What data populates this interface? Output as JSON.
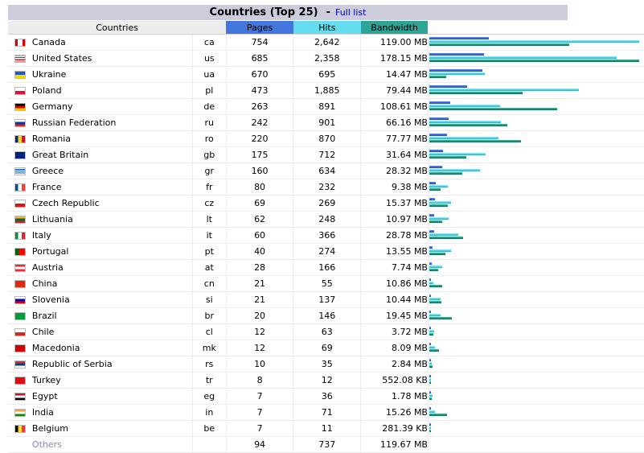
{
  "header": {
    "title": "Countries (Top 25)",
    "separator": "-",
    "full_list_link": "Full list"
  },
  "columns": {
    "country": "Countries",
    "pages": "Pages",
    "hits": "Hits",
    "bandwidth": "Bandwidth"
  },
  "colors": {
    "pages": "#4477dd",
    "hits": "#66ddee",
    "bandwidth": "#2ea495"
  },
  "rows": [
    {
      "name": "Canada",
      "code": "ca",
      "pages": "754",
      "hits": "2,642",
      "bandwidth": "119.00 MB",
      "flag_icon": "canada-flag-icon"
    },
    {
      "name": "United States",
      "code": "us",
      "pages": "685",
      "hits": "2,358",
      "bandwidth": "178.15 MB",
      "flag_icon": "united-states-flag-icon"
    },
    {
      "name": "Ukraine",
      "code": "ua",
      "pages": "670",
      "hits": "695",
      "bandwidth": "14.47 MB",
      "flag_icon": "ukraine-flag-icon"
    },
    {
      "name": "Poland",
      "code": "pl",
      "pages": "473",
      "hits": "1,885",
      "bandwidth": "79.44 MB",
      "flag_icon": "poland-flag-icon"
    },
    {
      "name": "Germany",
      "code": "de",
      "pages": "263",
      "hits": "891",
      "bandwidth": "108.61 MB",
      "flag_icon": "germany-flag-icon"
    },
    {
      "name": "Russian Federation",
      "code": "ru",
      "pages": "242",
      "hits": "901",
      "bandwidth": "66.16 MB",
      "flag_icon": "russia-flag-icon"
    },
    {
      "name": "Romania",
      "code": "ro",
      "pages": "220",
      "hits": "870",
      "bandwidth": "77.77 MB",
      "flag_icon": "romania-flag-icon"
    },
    {
      "name": "Great Britain",
      "code": "gb",
      "pages": "175",
      "hits": "712",
      "bandwidth": "31.64 MB",
      "flag_icon": "great-britain-flag-icon"
    },
    {
      "name": "Greece",
      "code": "gr",
      "pages": "160",
      "hits": "634",
      "bandwidth": "28.32 MB",
      "flag_icon": "greece-flag-icon"
    },
    {
      "name": "France",
      "code": "fr",
      "pages": "80",
      "hits": "232",
      "bandwidth": "9.38 MB",
      "flag_icon": "france-flag-icon"
    },
    {
      "name": "Czech Republic",
      "code": "cz",
      "pages": "69",
      "hits": "269",
      "bandwidth": "15.37 MB",
      "flag_icon": "czech-flag-icon"
    },
    {
      "name": "Lithuania",
      "code": "lt",
      "pages": "62",
      "hits": "248",
      "bandwidth": "10.97 MB",
      "flag_icon": "lithuania-flag-icon"
    },
    {
      "name": "Italy",
      "code": "it",
      "pages": "60",
      "hits": "366",
      "bandwidth": "28.78 MB",
      "flag_icon": "italy-flag-icon"
    },
    {
      "name": "Portugal",
      "code": "pt",
      "pages": "40",
      "hits": "274",
      "bandwidth": "13.55 MB",
      "flag_icon": "portugal-flag-icon"
    },
    {
      "name": "Austria",
      "code": "at",
      "pages": "28",
      "hits": "166",
      "bandwidth": "7.74 MB",
      "flag_icon": "austria-flag-icon"
    },
    {
      "name": "China",
      "code": "cn",
      "pages": "21",
      "hits": "55",
      "bandwidth": "10.86 MB",
      "flag_icon": "china-flag-icon"
    },
    {
      "name": "Slovenia",
      "code": "si",
      "pages": "21",
      "hits": "137",
      "bandwidth": "10.44 MB",
      "flag_icon": "slovenia-flag-icon"
    },
    {
      "name": "Brazil",
      "code": "br",
      "pages": "20",
      "hits": "146",
      "bandwidth": "19.45 MB",
      "flag_icon": "brazil-flag-icon"
    },
    {
      "name": "Chile",
      "code": "cl",
      "pages": "12",
      "hits": "63",
      "bandwidth": "3.72 MB",
      "flag_icon": "chile-flag-icon"
    },
    {
      "name": "Macedonia",
      "code": "mk",
      "pages": "12",
      "hits": "69",
      "bandwidth": "8.09 MB",
      "flag_icon": "macedonia-flag-icon"
    },
    {
      "name": "Republic of Serbia",
      "code": "rs",
      "pages": "10",
      "hits": "35",
      "bandwidth": "2.84 MB",
      "flag_icon": "serbia-flag-icon"
    },
    {
      "name": "Turkey",
      "code": "tr",
      "pages": "8",
      "hits": "12",
      "bandwidth": "552.08 KB",
      "flag_icon": "turkey-flag-icon"
    },
    {
      "name": "Egypt",
      "code": "eg",
      "pages": "7",
      "hits": "36",
      "bandwidth": "1.78 MB",
      "flag_icon": "egypt-flag-icon"
    },
    {
      "name": "India",
      "code": "in",
      "pages": "7",
      "hits": "71",
      "bandwidth": "15.26 MB",
      "flag_icon": "india-flag-icon"
    },
    {
      "name": "Belgium",
      "code": "be",
      "pages": "7",
      "hits": "11",
      "bandwidth": "281.39 KB",
      "flag_icon": "belgium-flag-icon"
    }
  ],
  "others": {
    "name": "Others",
    "pages": "94",
    "hits": "737",
    "bandwidth": "119.67 MB"
  }
}
